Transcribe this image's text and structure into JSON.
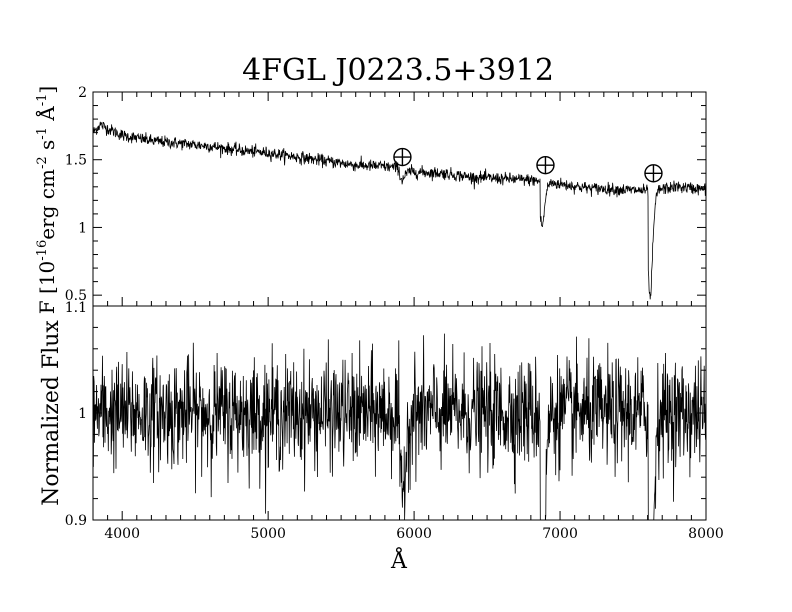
{
  "chart_data": {
    "type": "line",
    "title": "4FGL J0223.5+3912",
    "xlabel": "Å",
    "x_range": [
      3800,
      8000
    ],
    "x_ticks": [
      "4000",
      "5000",
      "6000",
      "7000",
      "8000"
    ],
    "top_panel": {
      "ylabel": {
        "prefix": "F [10",
        "exp1": "-16",
        "mid1": "erg cm",
        "exp2": "-2",
        "mid2": " s",
        "exp3": "-1",
        "mid3": " Å",
        "exp4": "-1",
        "suffix": "]"
      },
      "ylim": [
        0.42,
        2.0
      ],
      "y_ticks": [
        "0.5",
        "1",
        "1.5",
        "2"
      ],
      "markers": [
        {
          "symbol": "earth-symbol",
          "x": 5920,
          "y": 1.52
        },
        {
          "symbol": "earth-symbol",
          "x": 6900,
          "y": 1.46
        },
        {
          "symbol": "earth-symbol",
          "x": 7640,
          "y": 1.4
        }
      ],
      "continuum_points": [
        [
          3800,
          1.7
        ],
        [
          3850,
          1.76
        ],
        [
          3900,
          1.73
        ],
        [
          4000,
          1.68
        ],
        [
          4200,
          1.64
        ],
        [
          4400,
          1.62
        ],
        [
          4600,
          1.6
        ],
        [
          4800,
          1.57
        ],
        [
          5000,
          1.55
        ],
        [
          5200,
          1.52
        ],
        [
          5400,
          1.49
        ],
        [
          5600,
          1.46
        ],
        [
          5800,
          1.45
        ],
        [
          5900,
          1.44
        ],
        [
          6000,
          1.41
        ],
        [
          6200,
          1.4
        ],
        [
          6400,
          1.37
        ],
        [
          6600,
          1.36
        ],
        [
          6800,
          1.35
        ],
        [
          7000,
          1.32
        ],
        [
          7200,
          1.29
        ],
        [
          7400,
          1.28
        ],
        [
          7600,
          1.27
        ],
        [
          7800,
          1.3
        ],
        [
          8000,
          1.28
        ]
      ],
      "absorption_features": [
        {
          "center": 5920,
          "width": 40,
          "depth": 0.08
        },
        {
          "center": 6880,
          "width": 30,
          "depth": 0.33
        },
        {
          "center": 7620,
          "width": 30,
          "depth": 0.8
        }
      ]
    },
    "bottom_panel": {
      "ylabel": "Normalized Flux",
      "ylim": [
        0.9,
        1.1
      ],
      "y_ticks": [
        "0.9",
        "1",
        "1.1"
      ],
      "baseline": 1.0,
      "absorption_features": [
        {
          "center": 5920,
          "width": 40,
          "depth": 0.08
        },
        {
          "center": 6880,
          "width": 30,
          "depth": 0.25
        },
        {
          "center": 7620,
          "width": 30,
          "depth": 0.3
        }
      ]
    },
    "grid": false,
    "legend": "none"
  }
}
